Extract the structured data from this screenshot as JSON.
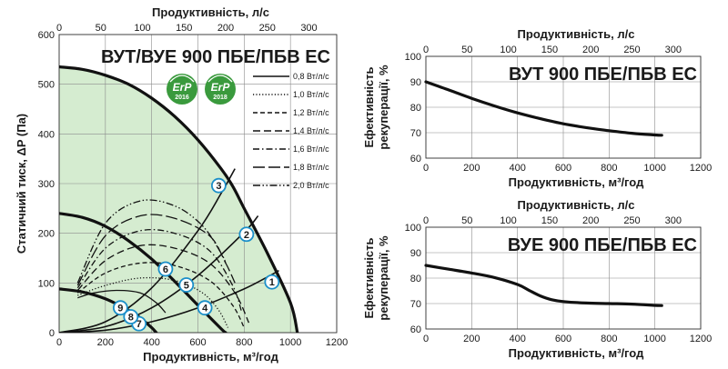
{
  "chart_data": [
    {
      "id": "pressure",
      "type": "line",
      "title": "ВУТ/ВУЕ 900 ПБЕ/ПБВ ЕС",
      "xlabel": "Продуктивність, м³/год",
      "x2label": "Продуктивність, л/с",
      "ylabel": "Статичний тиск, ΔP (Па)",
      "xlim": [
        0,
        1200
      ],
      "x2lim": [
        0,
        333.33
      ],
      "ylim": [
        0,
        600
      ],
      "xticks": [
        "0",
        "200",
        "400",
        "600",
        "800",
        "1000",
        "1200"
      ],
      "x2ticks": [
        "0",
        "50",
        "100",
        "150",
        "200",
        "250",
        "300"
      ],
      "yticks": [
        "0",
        "100",
        "200",
        "300",
        "400",
        "500",
        "600"
      ],
      "grid": true,
      "badges": [
        {
          "text": "ErP",
          "year": "2016",
          "color": "#3a9a3d"
        },
        {
          "text": "ErP",
          "year": "2018",
          "color": "#3a9a3d"
        }
      ],
      "legend": {
        "placement": "top-right",
        "entries": [
          {
            "label": "0,8 Вт/л/с",
            "dash": "solid"
          },
          {
            "label": "1,0 Вт/л/с",
            "dash": "dotted"
          },
          {
            "label": "1,2 Вт/л/с",
            "dash": "short-dash"
          },
          {
            "label": "1,4 Вт/л/с",
            "dash": "dash"
          },
          {
            "label": "1,6 Вт/л/с",
            "dash": "dash-dot"
          },
          {
            "label": "1,8 Вт/л/с",
            "dash": "long-dash"
          },
          {
            "label": "2,0 Вт/л/с",
            "dash": "dash-dot-dot"
          }
        ]
      },
      "fill_color": "#d5ecd0",
      "fan_curves": [
        {
          "name": "max",
          "x": [
            0,
            100,
            200,
            300,
            400,
            500,
            600,
            700,
            750,
            800,
            900,
            1000,
            1030
          ],
          "y": [
            535,
            530,
            518,
            500,
            472,
            435,
            388,
            330,
            295,
            250,
            160,
            60,
            0
          ]
        },
        {
          "name": "mid",
          "x": [
            0,
            100,
            200,
            300,
            400,
            500,
            600,
            700,
            720
          ],
          "y": [
            240,
            232,
            214,
            185,
            148,
            103,
            55,
            8,
            0
          ]
        },
        {
          "name": "min",
          "x": [
            0,
            100,
            200,
            300,
            350,
            400,
            420
          ],
          "y": [
            88,
            82,
            68,
            45,
            30,
            10,
            0
          ]
        }
      ],
      "system_curves": [
        {
          "name": "s1",
          "x": [
            0,
            200,
            400,
            600,
            800,
            900,
            950
          ],
          "y": [
            0,
            5,
            22,
            50,
            88,
            112,
            125
          ]
        },
        {
          "name": "s2",
          "x": [
            0,
            200,
            400,
            600,
            800,
            860
          ],
          "y": [
            0,
            12,
            50,
            115,
            202,
            235
          ]
        },
        {
          "name": "s3",
          "x": [
            0,
            200,
            400,
            600,
            700,
            760
          ],
          "y": [
            0,
            22,
            90,
            205,
            280,
            330
          ]
        }
      ],
      "efficiency_curves": [
        {
          "label": "0,8 Вт/л/с",
          "dash": "solid",
          "x": [
            80,
            150,
            250,
            350,
            420,
            460
          ],
          "y": [
            70,
            80,
            85,
            80,
            60,
            40
          ]
        },
        {
          "label": "1,0 Вт/л/с",
          "dash": "dotted",
          "x": [
            80,
            200,
            350,
            500,
            620,
            690,
            730
          ],
          "y": [
            75,
            95,
            110,
            105,
            80,
            45,
            10
          ]
        },
        {
          "label": "1,2 Вт/л/с",
          "dash": "short-dash",
          "x": [
            80,
            200,
            350,
            500,
            650,
            750,
            800
          ],
          "y": [
            80,
            120,
            140,
            135,
            105,
            55,
            10
          ]
        },
        {
          "label": "1,4 Вт/л/с",
          "dash": "dash",
          "x": [
            80,
            200,
            350,
            500,
            650,
            760,
            820
          ],
          "y": [
            85,
            145,
            175,
            170,
            140,
            80,
            20
          ]
        },
        {
          "label": "1,6 Вт/л/с",
          "dash": "dash-dot",
          "x": [
            80,
            200,
            350,
            500,
            650,
            750,
            790
          ],
          "y": [
            90,
            170,
            205,
            200,
            165,
            95,
            40
          ]
        },
        {
          "label": "1,8 Вт/л/с",
          "dash": "long-dash",
          "x": [
            80,
            200,
            350,
            500,
            650,
            720,
            760
          ],
          "y": [
            95,
            195,
            235,
            230,
            195,
            140,
            100
          ]
        },
        {
          "label": "2,0 Вт/л/с",
          "dash": "dash-dot-dot",
          "x": [
            80,
            200,
            350,
            500,
            620,
            700,
            720
          ],
          "y": [
            100,
            220,
            265,
            255,
            215,
            160,
            140
          ]
        }
      ],
      "markers": [
        {
          "label": "1",
          "x": 920,
          "y": 102
        },
        {
          "label": "2",
          "x": 810,
          "y": 198
        },
        {
          "label": "3",
          "x": 690,
          "y": 296
        },
        {
          "label": "4",
          "x": 630,
          "y": 50
        },
        {
          "label": "5",
          "x": 550,
          "y": 96
        },
        {
          "label": "6",
          "x": 460,
          "y": 128
        },
        {
          "label": "7",
          "x": 345,
          "y": 18
        },
        {
          "label": "8",
          "x": 310,
          "y": 32
        },
        {
          "label": "9",
          "x": 265,
          "y": 50
        }
      ]
    },
    {
      "id": "eff_vut",
      "type": "line",
      "title": "ВУТ 900 ПБЕ/ПБВ ЕС",
      "xlabel": "Продуктивність, м³/год",
      "x2label": "Продуктивність, л/с",
      "ylabel_line1": "Ефективність",
      "ylabel_line2": "рекуперації, %",
      "xlim": [
        0,
        1200
      ],
      "x2lim": [
        0,
        333.33
      ],
      "ylim": [
        60,
        100
      ],
      "xticks": [
        "0",
        "200",
        "400",
        "600",
        "800",
        "1000",
        "1200"
      ],
      "x2ticks": [
        "0",
        "50",
        "100",
        "150",
        "200",
        "250",
        "300"
      ],
      "yticks": [
        "60",
        "70",
        "80",
        "90",
        "100"
      ],
      "grid": true,
      "series": [
        {
          "x": [
            0,
            100,
            200,
            300,
            400,
            500,
            600,
            700,
            800,
            900,
            1000,
            1030
          ],
          "y": [
            90,
            86.8,
            83.5,
            80.5,
            77.8,
            75.5,
            73.5,
            72,
            70.8,
            69.8,
            69.1,
            69
          ]
        }
      ]
    },
    {
      "id": "eff_vue",
      "type": "line",
      "title": "ВУЕ 900 ПБЕ/ПБВ ЕС",
      "xlabel": "Продуктивність, м³/год",
      "x2label": "Продуктивність, л/с",
      "ylabel_line1": "Ефективність",
      "ylabel_line2": "рекуперації, %",
      "xlim": [
        0,
        1200
      ],
      "x2lim": [
        0,
        333.33
      ],
      "ylim": [
        60,
        100
      ],
      "xticks": [
        "0",
        "200",
        "400",
        "600",
        "800",
        "1000",
        "1200"
      ],
      "x2ticks": [
        "0",
        "50",
        "100",
        "150",
        "200",
        "250",
        "300"
      ],
      "yticks": [
        "60",
        "70",
        "80",
        "90",
        "100"
      ],
      "grid": true,
      "series": [
        {
          "x": [
            0,
            100,
            200,
            300,
            400,
            450,
            500,
            550,
            600,
            700,
            800,
            900,
            1000,
            1030
          ],
          "y": [
            85,
            83.5,
            82,
            80.2,
            77.5,
            75.2,
            73,
            71.5,
            70.8,
            70.2,
            70,
            69.8,
            69.3,
            69.2
          ]
        }
      ]
    }
  ]
}
